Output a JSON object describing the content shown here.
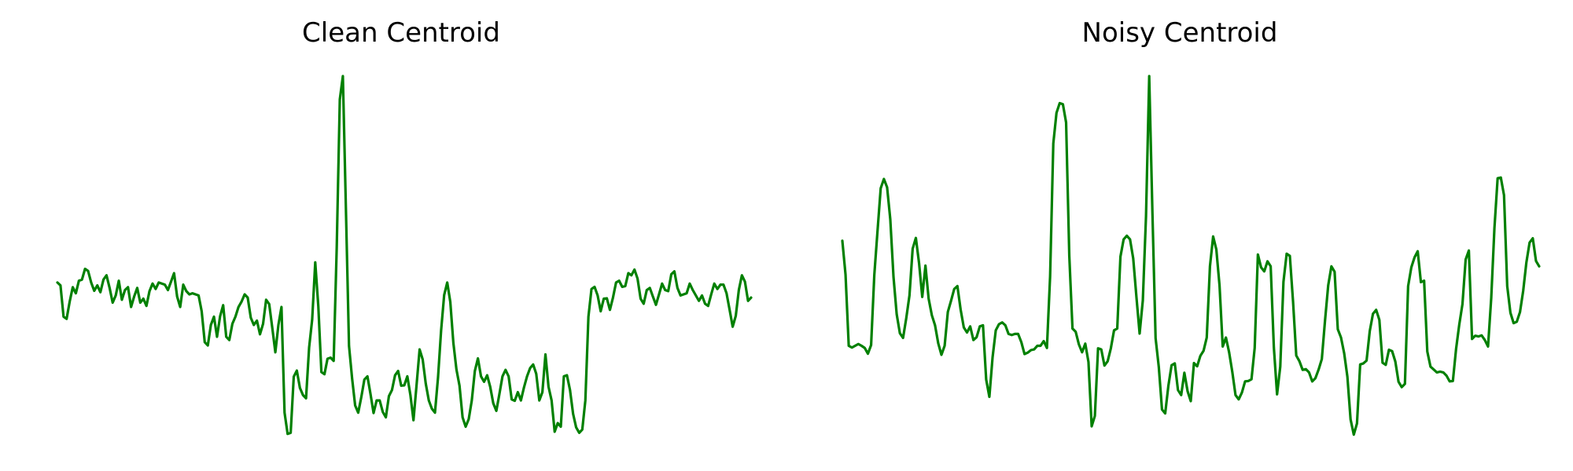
{
  "chart_data": [
    {
      "type": "line",
      "title": "Clean Centroid",
      "xlabel": "",
      "ylabel": "",
      "axes": false,
      "grid": false,
      "x_range": [
        0,
        143
      ],
      "ylim": [
        0,
        1
      ],
      "series": [
        {
          "color": "#008000",
          "values": [
            0.426,
            0.418,
            0.331,
            0.325,
            0.373,
            0.413,
            0.396,
            0.431,
            0.434,
            0.464,
            0.458,
            0.426,
            0.403,
            0.418,
            0.399,
            0.434,
            0.446,
            0.411,
            0.37,
            0.39,
            0.431,
            0.378,
            0.405,
            0.413,
            0.358,
            0.387,
            0.411,
            0.37,
            0.381,
            0.361,
            0.402,
            0.423,
            0.408,
            0.426,
            0.423,
            0.42,
            0.405,
            0.428,
            0.452,
            0.387,
            0.358,
            0.42,
            0.402,
            0.393,
            0.396,
            0.393,
            0.39,
            0.346,
            0.26,
            0.251,
            0.308,
            0.331,
            0.275,
            0.332,
            0.363,
            0.275,
            0.266,
            0.311,
            0.331,
            0.358,
            0.373,
            0.393,
            0.384,
            0.328,
            0.308,
            0.32,
            0.282,
            0.311,
            0.378,
            0.366,
            0.3,
            0.232,
            0.308,
            0.358,
            0.064,
            0.005,
            0.008,
            0.164,
            0.181,
            0.133,
            0.113,
            0.104,
            0.245,
            0.323,
            0.482,
            0.36,
            0.177,
            0.171,
            0.214,
            0.217,
            0.208,
            0.524,
            0.935,
            1.0,
            0.627,
            0.25,
            0.16,
            0.084,
            0.064,
            0.107,
            0.156,
            0.165,
            0.116,
            0.063,
            0.098,
            0.098,
            0.066,
            0.051,
            0.11,
            0.127,
            0.168,
            0.18,
            0.139,
            0.14,
            0.165,
            0.113,
            0.043,
            0.14,
            0.24,
            0.212,
            0.145,
            0.098,
            0.075,
            0.064,
            0.162,
            0.292,
            0.391,
            0.426,
            0.372,
            0.258,
            0.184,
            0.139,
            0.051,
            0.025,
            0.046,
            0.098,
            0.18,
            0.215,
            0.165,
            0.15,
            0.168,
            0.136,
            0.09,
            0.069,
            0.116,
            0.165,
            0.183,
            0.165,
            0.101,
            0.097,
            0.121,
            0.098,
            0.134,
            0.165,
            0.188,
            0.198,
            0.172,
            0.098,
            0.121,
            0.226,
            0.136,
            0.098,
            0.011,
            0.035,
            0.025,
            0.165,
            0.168,
            0.127,
            0.061,
            0.023,
            0.008,
            0.017,
            0.098,
            0.331,
            0.408,
            0.414,
            0.39,
            0.346,
            0.381,
            0.382,
            0.35,
            0.384,
            0.426,
            0.431,
            0.414,
            0.416,
            0.452,
            0.446,
            0.462,
            0.437,
            0.381,
            0.367,
            0.405,
            0.411,
            0.387,
            0.364,
            0.393,
            0.423,
            0.405,
            0.402,
            0.449,
            0.457,
            0.411,
            0.39,
            0.393,
            0.396,
            0.423,
            0.405,
            0.39,
            0.375,
            0.39,
            0.367,
            0.361,
            0.393,
            0.423,
            0.408,
            0.42,
            0.42,
            0.396,
            0.35,
            0.303,
            0.333,
            0.405,
            0.446,
            0.428,
            0.375,
            0.384
          ]
        }
      ]
    },
    {
      "type": "line",
      "title": "Noisy Centroid",
      "xlabel": "",
      "ylabel": "",
      "axes": false,
      "grid": false,
      "x_range": [
        0,
        143
      ],
      "ylim": [
        0,
        1
      ],
      "series": [
        {
          "color": "#008000",
          "values": [
            0.542,
            0.448,
            0.25,
            0.245,
            0.25,
            0.255,
            0.25,
            0.244,
            0.228,
            0.252,
            0.447,
            0.569,
            0.688,
            0.714,
            0.691,
            0.602,
            0.442,
            0.338,
            0.285,
            0.272,
            0.327,
            0.39,
            0.52,
            0.55,
            0.48,
            0.386,
            0.473,
            0.381,
            0.335,
            0.307,
            0.257,
            0.225,
            0.25,
            0.344,
            0.375,
            0.408,
            0.416,
            0.351,
            0.301,
            0.287,
            0.304,
            0.266,
            0.274,
            0.304,
            0.307,
            0.156,
            0.108,
            0.218,
            0.293,
            0.31,
            0.315,
            0.307,
            0.283,
            0.28,
            0.283,
            0.283,
            0.26,
            0.227,
            0.231,
            0.238,
            0.24,
            0.25,
            0.25,
            0.263,
            0.244,
            0.443,
            0.813,
            0.898,
            0.925,
            0.922,
            0.871,
            0.5,
            0.298,
            0.289,
            0.254,
            0.232,
            0.256,
            0.205,
            0.026,
            0.055,
            0.243,
            0.24,
            0.195,
            0.207,
            0.243,
            0.293,
            0.298,
            0.498,
            0.546,
            0.556,
            0.546,
            0.493,
            0.386,
            0.284,
            0.376,
            0.61,
            1.0,
            0.623,
            0.271,
            0.191,
            0.073,
            0.062,
            0.139,
            0.196,
            0.201,
            0.127,
            0.113,
            0.175,
            0.124,
            0.096,
            0.202,
            0.193,
            0.222,
            0.236,
            0.273,
            0.471,
            0.554,
            0.518,
            0.418,
            0.248,
            0.273,
            0.232,
            0.177,
            0.113,
            0.101,
            0.12,
            0.151,
            0.152,
            0.157,
            0.244,
            0.504,
            0.468,
            0.457,
            0.485,
            0.471,
            0.245,
            0.115,
            0.192,
            0.428,
            0.506,
            0.5,
            0.373,
            0.223,
            0.207,
            0.183,
            0.185,
            0.176,
            0.151,
            0.16,
            0.184,
            0.213,
            0.32,
            0.418,
            0.471,
            0.456,
            0.296,
            0.273,
            0.229,
            0.164,
            0.045,
            0.003,
            0.034,
            0.198,
            0.201,
            0.209,
            0.291,
            0.339,
            0.35,
            0.322,
            0.203,
            0.197,
            0.239,
            0.235,
            0.206,
            0.15,
            0.135,
            0.144,
            0.416,
            0.468,
            0.496,
            0.513,
            0.427,
            0.431,
            0.234,
            0.192,
            0.184,
            0.176,
            0.178,
            0.176,
            0.167,
            0.151,
            0.152,
            0.241,
            0.309,
            0.366,
            0.49,
            0.515,
            0.269,
            0.278,
            0.276,
            0.279,
            0.266,
            0.248,
            0.383,
            0.577,
            0.716,
            0.718,
            0.669,
            0.416,
            0.342,
            0.313,
            0.317,
            0.344,
            0.403,
            0.482,
            0.537,
            0.549,
            0.486,
            0.471
          ]
        }
      ]
    }
  ]
}
